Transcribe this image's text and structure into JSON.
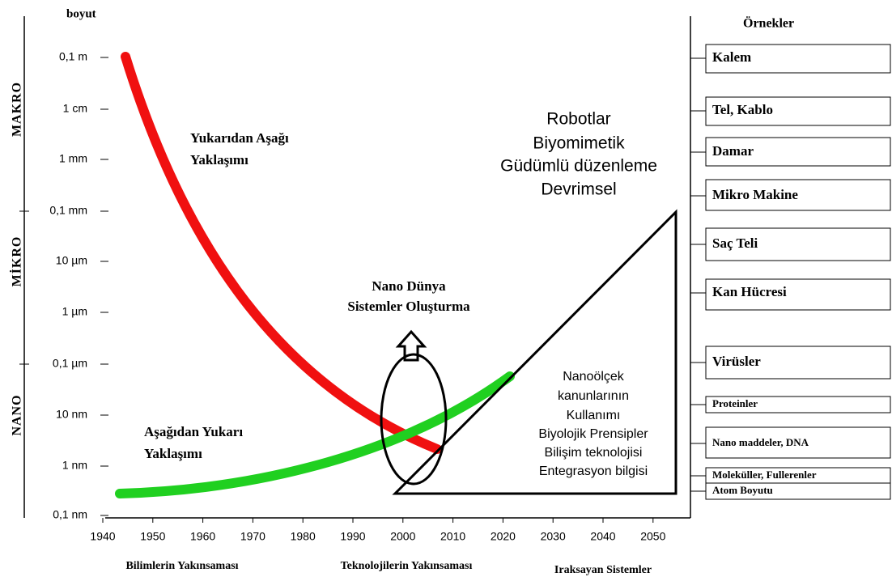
{
  "axis_label": "boyut",
  "size_ticks": [
    "0,1 m",
    "1 cm",
    "1 mm",
    "0,1 mm",
    "10 µm",
    "1 µm",
    "0,1 µm",
    "10 nm",
    "1 nm",
    "0,1 nm"
  ],
  "regions": [
    "MAKRO",
    "MİKRO",
    "NANO"
  ],
  "year_ticks": [
    "1940",
    "1950",
    "1960",
    "1970",
    "1980",
    "1990",
    "2000",
    "2010",
    "2020",
    "2030",
    "2040",
    "2050"
  ],
  "phases": [
    "Bilimlerin Yakınsaması",
    "Teknolojilerin Yakınsaması",
    "Iraksayan Sistemler"
  ],
  "top_down": [
    "Yukarıdan Aşağı",
    "Yaklaşımı"
  ],
  "bottom_up": [
    "Aşağıdan Yukarı",
    "Yaklaşımı"
  ],
  "nano_world": [
    "Nano Dünya",
    "Sistemler Oluşturma"
  ],
  "future": [
    "Robotlar",
    "Biyomimetik",
    "Güdümlü düzenleme",
    "Devrimsel"
  ],
  "nanoscale": [
    "Nanoölçek",
    "kanunlarının",
    "Kullanımı",
    "Biyolojik Prensipler",
    "Bilişim teknolojisi",
    "Entegrasyon bilgisi"
  ],
  "examples_title": "Örnekler",
  "examples": [
    "Kalem",
    "Tel, Kablo",
    "Damar",
    "Mikro Makine",
    "Saç Teli",
    "Kan Hücresi",
    "Virüsler",
    "Proteinler",
    "Nano maddeler, DNA",
    "Moleküller, Fullerenler",
    "Atom Boyutu"
  ]
}
